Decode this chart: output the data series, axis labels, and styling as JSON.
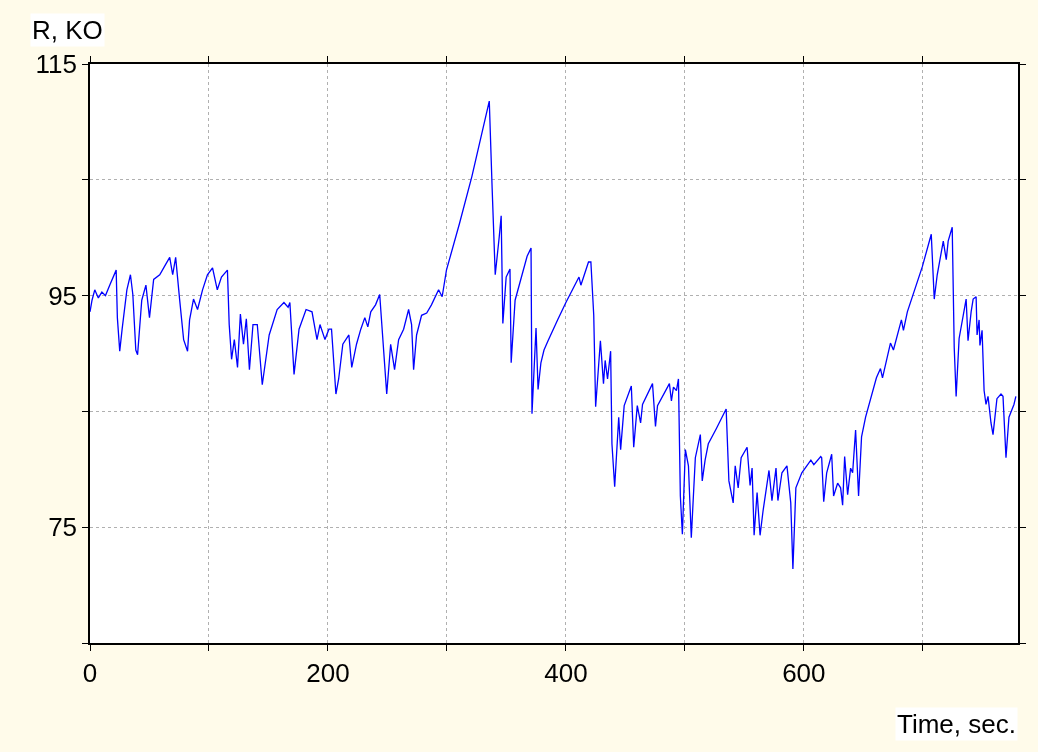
{
  "chart_data": {
    "type": "line",
    "xlabel": "Time, sec.",
    "ylabel": "R, KO",
    "xlim": [
      0,
      780
    ],
    "ylim": [
      65,
      115
    ],
    "xticks": [
      0,
      {
        "value": 100,
        "label": null
      },
      200,
      {
        "value": 300,
        "label": null
      },
      400,
      {
        "value": 500,
        "label": null
      },
      600,
      {
        "value": 700,
        "label": null
      }
    ],
    "yticks": [
      {
        "value": 65,
        "label": null
      },
      75,
      {
        "value": 85,
        "label": null
      },
      95,
      {
        "value": 105,
        "label": null
      },
      115
    ],
    "grid": true,
    "marker": "none",
    "line_style": "solid",
    "series": [
      {
        "color": "#0000ff",
        "x": [
          0,
          1.7,
          4,
          7,
          10,
          13,
          17,
          22,
          23,
          25,
          27,
          31,
          34,
          36,
          38.5,
          40,
          43.5,
          47,
          50,
          53.5,
          58.6,
          63.6,
          67,
          69.5,
          72,
          75.3,
          78.7,
          82,
          83.7,
          87,
          90.4,
          94.6,
          98.7,
          103,
          107,
          110.5,
          115.5,
          117,
          119,
          121.3,
          124,
          126.4,
          129,
          131.4,
          134,
          137,
          140.6,
          144.8,
          150.6,
          157.3,
          163,
          166.5,
          168,
          171.5,
          175.7,
          181.6,
          186.6,
          190.8,
          193.3,
          197.5,
          200.8,
          203,
          206.7,
          209,
          212.5,
          217.6,
          220,
          224,
          227.6,
          231,
          233.5,
          236,
          240,
          243.5,
          249.4,
          252.7,
          256,
          259.4,
          263.6,
          267.8,
          270.3,
          272,
          274.5,
          278.7,
          283,
          287,
          293,
          296,
          299.6,
          310.5,
          321,
          335.6,
          338,
          340.6,
          344,
          345.6,
          347,
          349.8,
          353,
          354,
          357.3,
          367.4,
          370.7,
          371.5,
          374.9,
          376.6,
          379,
          381.6,
          385,
          393,
          400,
          411,
          412.6,
          419,
          421,
          423.4,
          425,
          429,
          431.6,
          433,
          435,
          437.6,
          438.7,
          441,
          444.4,
          446,
          449,
          455,
          457,
          460,
          462.8,
          464.4,
          472.8,
          475.3,
          477,
          487,
          488.7,
          490.4,
          492.9,
          494.6,
          496.2,
          497.9,
          500.4,
          503,
          505.4,
          508.8,
          513,
          514.6,
          517,
          519.7,
          526.4,
          534.7,
          537,
          540.6,
          542.3,
          544.8,
          547.3,
          552.3,
          554.8,
          556.5,
          558.2,
          560.7,
          563.2,
          565.7,
          570.7,
          573.2,
          576.6,
          578.2,
          581.6,
          585.8,
          589,
          590.8,
          593.3,
          598.3,
          605.9,
          608.4,
          614.2,
          615,
          616.7,
          619.2,
          623.4,
          625,
          628.4,
          630.9,
          632.6,
          634.3,
          636.8,
          639.3,
          641,
          643.5,
          646,
          648.5,
          651.9,
          661,
          664.4,
          666.1,
          672.8,
          675.3,
          682,
          683.7,
          687,
          699.6,
          707.1,
          709.6,
          712.1,
          717.2,
          719.7,
          721.3,
          724.7,
          726.4,
          728,
          730.5,
          736.4,
          738,
          740.6,
          742.3,
          744.8,
          745.6,
          747.3,
          748,
          749.8,
          751.5,
          753.1,
          754.8,
          757.3,
          759,
          762.3,
          765.7,
          767.4,
          769.9,
          772.4,
          776.6,
          778.2
        ],
        "values": [
          93.6,
          94.6,
          95.5,
          94.8,
          95.3,
          95.0,
          96.0,
          97.2,
          93.1,
          90.2,
          92.1,
          95.5,
          96.8,
          95.1,
          90.3,
          89.9,
          94.6,
          95.9,
          93.1,
          96.4,
          96.8,
          97.7,
          98.3,
          96.8,
          98.3,
          94.7,
          91.2,
          90.2,
          92.9,
          94.7,
          93.8,
          95.5,
          96.8,
          97.4,
          95.5,
          96.6,
          97.2,
          92.5,
          89.5,
          91.2,
          88.8,
          93.4,
          90.8,
          93.0,
          88.6,
          92.5,
          92.5,
          87.3,
          91.6,
          93.8,
          94.4,
          94.0,
          94.4,
          88.2,
          92.1,
          93.8,
          93.6,
          91.2,
          92.5,
          91.2,
          92.1,
          92.1,
          86.5,
          87.8,
          90.8,
          91.6,
          88.8,
          90.8,
          92.1,
          93.1,
          92.3,
          93.6,
          94.2,
          95.1,
          86.5,
          90.8,
          88.6,
          91.2,
          92.1,
          93.8,
          92.5,
          88.6,
          91.6,
          93.3,
          93.5,
          94.2,
          95.5,
          94.9,
          97.2,
          101.2,
          105.3,
          111.8,
          104.3,
          96.8,
          100.1,
          101.9,
          92.6,
          96.6,
          97.3,
          89.2,
          94.6,
          98.4,
          99.1,
          84.8,
          92.2,
          86.9,
          89.2,
          90.3,
          91.1,
          92.9,
          94.4,
          96.6,
          95.9,
          97.9,
          97.9,
          93.3,
          85.4,
          91.1,
          87.4,
          89.4,
          87.8,
          90.2,
          82.2,
          78.5,
          84.5,
          81.7,
          85.5,
          87.2,
          81.9,
          85.5,
          84.0,
          85.6,
          87.4,
          83.7,
          85.5,
          87.4,
          85.9,
          87.1,
          86.8,
          87.8,
          77.7,
          74.4,
          81.7,
          80.3,
          74.1,
          81.0,
          83.0,
          79.0,
          80.8,
          82.2,
          83.5,
          85.2,
          79.0,
          77.1,
          80.3,
          78.4,
          81.0,
          81.9,
          78.6,
          80.1,
          74.3,
          78.0,
          74.3,
          76.4,
          79.9,
          77.3,
          80.1,
          77.3,
          79.7,
          80.3,
          77.1,
          71.4,
          78.4,
          79.7,
          80.8,
          80.4,
          81.1,
          81.0,
          77.2,
          79.7,
          81.3,
          77.7,
          78.8,
          78.4,
          76.9,
          81.1,
          77.8,
          80.1,
          79.7,
          83.4,
          77.7,
          82.8,
          84.5,
          87.9,
          88.7,
          87.9,
          90.9,
          90.3,
          92.9,
          92.0,
          93.6,
          97.5,
          100.3,
          94.7,
          96.8,
          99.7,
          98.1,
          99.7,
          100.9,
          90.5,
          86.3,
          91.3,
          94.7,
          91.1,
          93.6,
          94.7,
          94.9,
          91.6,
          92.9,
          90.7,
          92.0,
          86.8,
          85.6,
          86.3,
          84.0,
          83.0,
          86.1,
          86.5,
          86.3,
          81.0,
          84.5,
          85.6,
          86.3
        ]
      }
    ]
  }
}
